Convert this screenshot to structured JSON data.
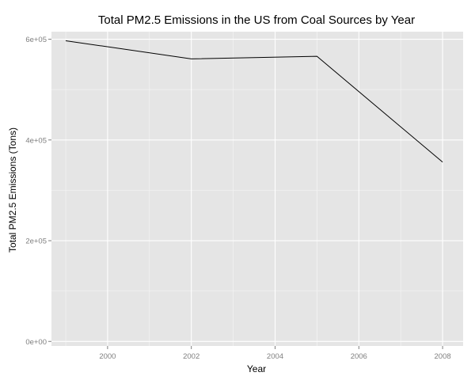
{
  "chart_data": {
    "type": "line",
    "title": "Total PM2.5 Emissions in the US from Coal Sources by Year",
    "xlabel": "Year",
    "ylabel": "Total PM2.5 Emissions (Tons)",
    "x": [
      1999,
      2002,
      2005,
      2008
    ],
    "series": [
      {
        "values": [
          597000,
          561000,
          566000,
          356000
        ]
      }
    ],
    "xlim": [
      1998.66,
      2008.49
    ],
    "ylim": [
      -9000,
      615000
    ],
    "xticks": [
      2000,
      2002,
      2004,
      2006,
      2008
    ],
    "xtick_labels": [
      "2000",
      "2002",
      "2004",
      "2006",
      "2008"
    ],
    "yticks": [
      0,
      200000,
      400000,
      600000
    ],
    "ytick_labels": [
      "0e+00",
      "2e+05",
      "4e+05",
      "6e+05"
    ],
    "grid": true,
    "legend": false,
    "colors": {
      "panel": "#e5e5e5",
      "grid_major": "#ffffff",
      "grid_minor": "#f2f2f2",
      "line": "#000000",
      "tick_label": "#7f7f7f"
    }
  }
}
